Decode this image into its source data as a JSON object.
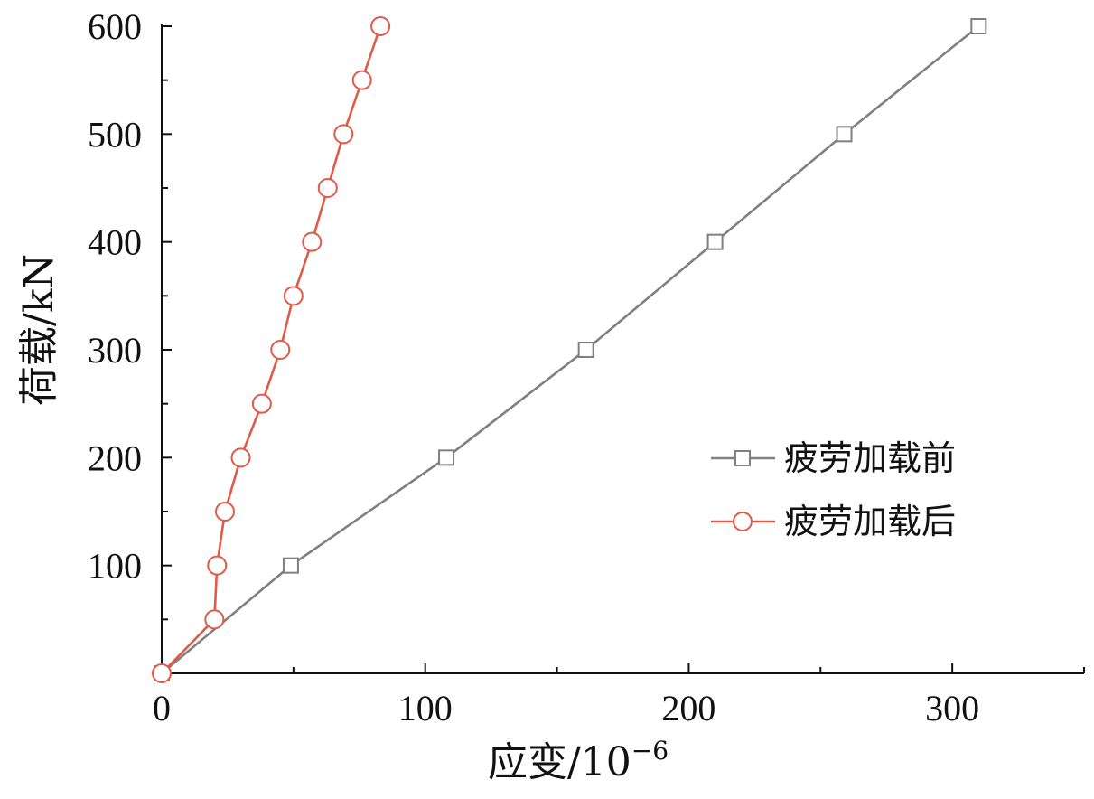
{
  "chart_data": {
    "type": "line",
    "xlabel": "应变/10",
    "xlabel_sup": "−6",
    "ylabel": "荷载/kN",
    "xlim": [
      0,
      350
    ],
    "ylim": [
      0,
      600
    ],
    "x_ticks": [
      0,
      100,
      200,
      300
    ],
    "y_ticks": [
      100,
      200,
      300,
      400,
      500,
      600
    ],
    "grid": false,
    "legend_position": "right",
    "series": [
      {
        "name": "疲劳加载前",
        "color": "#808080",
        "marker": "square",
        "x": [
          0,
          49,
          108,
          161,
          210,
          259,
          310
        ],
        "y": [
          0,
          100,
          200,
          300,
          400,
          500,
          600
        ]
      },
      {
        "name": "疲劳加载后",
        "color": "#e05a48",
        "marker": "circle",
        "x": [
          0,
          20,
          21,
          24,
          30,
          38,
          45,
          50,
          57,
          63,
          69,
          76,
          83
        ],
        "y": [
          0,
          50,
          100,
          150,
          200,
          250,
          300,
          350,
          400,
          450,
          500,
          550,
          600
        ]
      }
    ]
  }
}
